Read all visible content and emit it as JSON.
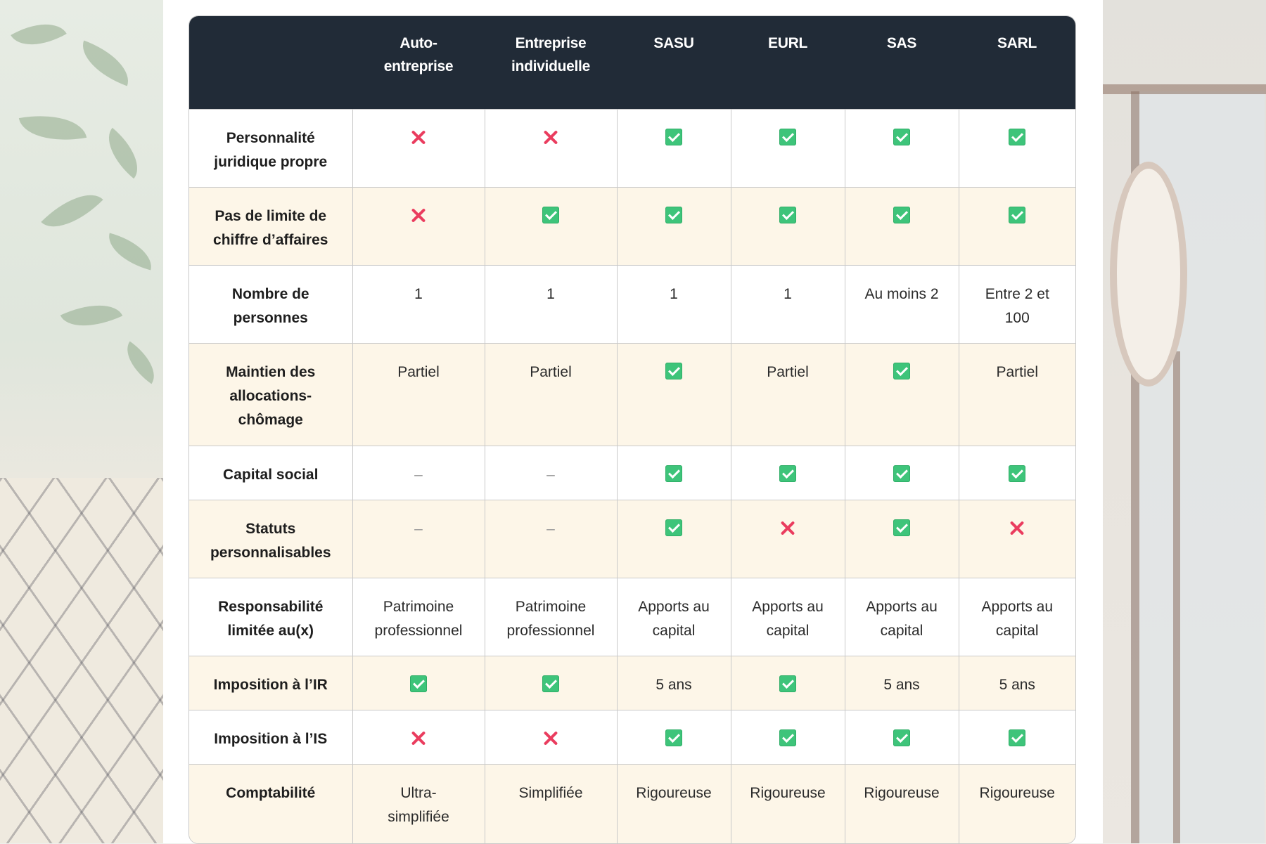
{
  "table": {
    "headers": [
      "",
      "Auto-entreprise",
      "Entreprise individuelle",
      "SASU",
      "EURL",
      "SAS",
      "SARL"
    ],
    "header_lines": [
      [],
      [
        "Auto-",
        "entreprise"
      ],
      [
        "Entreprise",
        "individuelle"
      ],
      [
        "SASU"
      ],
      [
        "EURL"
      ],
      [
        "SAS"
      ],
      [
        "SARL"
      ]
    ],
    "rows": [
      {
        "label_lines": [
          "Personnalité",
          "juridique propre"
        ],
        "cells": [
          {
            "icon": "cross-icon"
          },
          {
            "icon": "cross-icon"
          },
          {
            "icon": "check-icon"
          },
          {
            "icon": "check-icon"
          },
          {
            "icon": "check-icon"
          },
          {
            "icon": "check-icon"
          }
        ]
      },
      {
        "label_lines": [
          "Pas de limite de",
          "chiffre d’affaires"
        ],
        "cells": [
          {
            "icon": "cross-icon"
          },
          {
            "icon": "check-icon"
          },
          {
            "icon": "check-icon"
          },
          {
            "icon": "check-icon"
          },
          {
            "icon": "check-icon"
          },
          {
            "icon": "check-icon"
          }
        ]
      },
      {
        "label_lines": [
          "Nombre de",
          "personnes"
        ],
        "cells": [
          {
            "lines": [
              "1"
            ]
          },
          {
            "lines": [
              "1"
            ]
          },
          {
            "lines": [
              "1"
            ]
          },
          {
            "lines": [
              "1"
            ]
          },
          {
            "lines": [
              "Au moins 2"
            ]
          },
          {
            "lines": [
              "Entre 2 et",
              "100"
            ]
          }
        ]
      },
      {
        "label_lines": [
          "Maintien des",
          "allocations-",
          "chômage"
        ],
        "cells": [
          {
            "lines": [
              "Partiel"
            ]
          },
          {
            "lines": [
              "Partiel"
            ]
          },
          {
            "icon": "check-icon"
          },
          {
            "lines": [
              "Partiel"
            ]
          },
          {
            "icon": "check-icon"
          },
          {
            "lines": [
              "Partiel"
            ]
          }
        ]
      },
      {
        "label_lines": [
          "Capital social"
        ],
        "cells": [
          {
            "dash": "–"
          },
          {
            "dash": "–"
          },
          {
            "icon": "check-icon"
          },
          {
            "icon": "check-icon"
          },
          {
            "icon": "check-icon"
          },
          {
            "icon": "check-icon"
          }
        ]
      },
      {
        "label_lines": [
          "Statuts",
          "personnalisables"
        ],
        "cells": [
          {
            "dash": "–"
          },
          {
            "dash": "–"
          },
          {
            "icon": "check-icon"
          },
          {
            "icon": "cross-icon"
          },
          {
            "icon": "check-icon"
          },
          {
            "icon": "cross-icon"
          }
        ]
      },
      {
        "label_lines": [
          "Responsabilité",
          "limitée au(x)"
        ],
        "cells": [
          {
            "lines": [
              "Patrimoine",
              "professionnel"
            ]
          },
          {
            "lines": [
              "Patrimoine",
              "professionnel"
            ]
          },
          {
            "lines": [
              "Apports au",
              "capital"
            ]
          },
          {
            "lines": [
              "Apports au",
              "capital"
            ]
          },
          {
            "lines": [
              "Apports au",
              "capital"
            ]
          },
          {
            "lines": [
              "Apports au",
              "capital"
            ]
          }
        ]
      },
      {
        "label_lines": [
          "Imposition à l’IR"
        ],
        "cells": [
          {
            "icon": "check-icon"
          },
          {
            "icon": "check-icon"
          },
          {
            "lines": [
              "5 ans"
            ]
          },
          {
            "icon": "check-icon"
          },
          {
            "lines": [
              "5 ans"
            ]
          },
          {
            "lines": [
              "5 ans"
            ]
          }
        ]
      },
      {
        "label_lines": [
          "Imposition à l’IS"
        ],
        "cells": [
          {
            "icon": "cross-icon"
          },
          {
            "icon": "cross-icon"
          },
          {
            "icon": "check-icon"
          },
          {
            "icon": "check-icon"
          },
          {
            "icon": "check-icon"
          },
          {
            "icon": "check-icon"
          }
        ]
      },
      {
        "label_lines": [
          "Comptabilité"
        ],
        "cells": [
          {
            "lines": [
              "Ultra-",
              "simplifiée"
            ]
          },
          {
            "lines": [
              "Simplifiée"
            ]
          },
          {
            "lines": [
              "Rigoureuse"
            ]
          },
          {
            "lines": [
              "Rigoureuse"
            ]
          },
          {
            "lines": [
              "Rigoureuse"
            ]
          },
          {
            "lines": [
              "Rigoureuse"
            ]
          }
        ]
      }
    ]
  },
  "colors": {
    "header_bg": "#212b37",
    "alt_row_bg": "#fdf6e8",
    "check": "#3ec47a",
    "cross": "#ea3c5e"
  }
}
